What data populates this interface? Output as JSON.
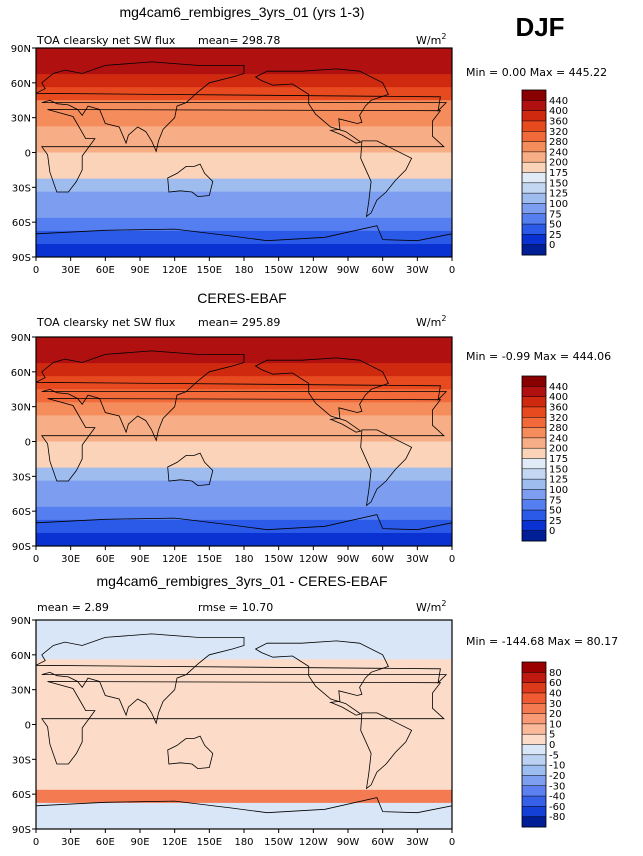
{
  "season": "DJF",
  "chart_data": [
    {
      "type": "heatmap",
      "title": "mg4cam6_rembigres_3yrs_01 (yrs 1-3)",
      "left_label": "TOA clearsky net SW flux",
      "stat_text": "mean=  298.78",
      "units": "W/m",
      "units_sup": "2",
      "minmax_text": "Min =    0.00 Max = 445.22",
      "min": 0.0,
      "max": 445.22,
      "mean": 298.78,
      "x_ticks": [
        "0",
        "30E",
        "60E",
        "90E",
        "120E",
        "150E",
        "180",
        "150W",
        "120W",
        "90W",
        "60W",
        "30W",
        "0"
      ],
      "y_ticks": [
        "90N",
        "60N",
        "30N",
        "0",
        "30S",
        "60S",
        "90S"
      ],
      "colorbar_labels": [
        "440",
        "400",
        "360",
        "320",
        "280",
        "240",
        "200",
        "175",
        "150",
        "125",
        "100",
        "75",
        "50",
        "25",
        "0"
      ],
      "colors": [
        "#880000",
        "#b01010",
        "#cf2a10",
        "#e84a20",
        "#f26a3a",
        "#f58c5c",
        "#f7ae86",
        "#fad3b8",
        "#e1ebf7",
        "#c3d6f2",
        "#9fbcef",
        "#7d9ef0",
        "#557ef0",
        "#2c5ae8",
        "#0a32d2",
        "#001e96"
      ],
      "band_levels": [
        1,
        1,
        2,
        3,
        5,
        5,
        6,
        6,
        7,
        7,
        10,
        11,
        11,
        12,
        13,
        14
      ]
    },
    {
      "type": "heatmap",
      "title": "CERES-EBAF",
      "left_label": "TOA clearsky net SW flux",
      "stat_text": "mean=  295.89",
      "units": "W/m",
      "units_sup": "2",
      "minmax_text": "Min =  -0.99 Max = 444.06",
      "min": -0.99,
      "max": 444.06,
      "mean": 295.89,
      "x_ticks": [
        "0",
        "30E",
        "60E",
        "90E",
        "120E",
        "150E",
        "180",
        "150W",
        "120W",
        "90W",
        "60W",
        "30W",
        "0"
      ],
      "y_ticks": [
        "90N",
        "60N",
        "30N",
        "0",
        "30S",
        "60S",
        "90S"
      ],
      "colorbar_labels": [
        "440",
        "400",
        "360",
        "320",
        "280",
        "240",
        "200",
        "175",
        "150",
        "125",
        "100",
        "75",
        "50",
        "25",
        "0"
      ],
      "colors": [
        "#880000",
        "#b01010",
        "#cf2a10",
        "#e84a20",
        "#f26a3a",
        "#f58c5c",
        "#f7ae86",
        "#fad3b8",
        "#e1ebf7",
        "#c3d6f2",
        "#9fbcef",
        "#7d9ef0",
        "#557ef0",
        "#2c5ae8",
        "#0a32d2",
        "#001e96"
      ],
      "band_levels": [
        1,
        1,
        2,
        3,
        4,
        5,
        6,
        6,
        7,
        7,
        10,
        11,
        11,
        12,
        13,
        14
      ]
    },
    {
      "type": "heatmap",
      "title": "mg4cam6_rembigres_3yrs_01 - CERES-EBAF",
      "left_label": "mean =    2.89",
      "stat_text": "rmse =   10.70",
      "units": "W/m",
      "units_sup": "2",
      "minmax_text": "Min = -144.68 Max =  80.17",
      "min": -144.68,
      "max": 80.17,
      "mean": 2.89,
      "rmse": 10.7,
      "x_ticks": [
        "0",
        "30E",
        "60E",
        "90E",
        "120E",
        "150E",
        "180",
        "150W",
        "120W",
        "90W",
        "60W",
        "30W",
        "0"
      ],
      "y_ticks": [
        "90N",
        "60N",
        "30N",
        "0",
        "30S",
        "60S",
        "90S"
      ],
      "colorbar_labels": [
        "80",
        "60",
        "40",
        "30",
        "20",
        "10",
        "5",
        "0",
        "-5",
        "-10",
        "-20",
        "-30",
        "-40",
        "-60",
        "-80"
      ],
      "colors": [
        "#9a0000",
        "#c01a10",
        "#dc3a1a",
        "#f05a32",
        "#f47a52",
        "#f79a75",
        "#f9b99a",
        "#fcdcc8",
        "#d8e6f7",
        "#bcd2f3",
        "#9dbcef",
        "#7e9ff0",
        "#5c80f0",
        "#3660e8",
        "#1440d8",
        "#001e96"
      ],
      "band_levels": [
        8,
        8,
        8,
        7,
        7,
        7,
        7,
        7,
        7,
        7,
        7,
        7,
        7,
        4,
        8,
        8
      ]
    }
  ]
}
